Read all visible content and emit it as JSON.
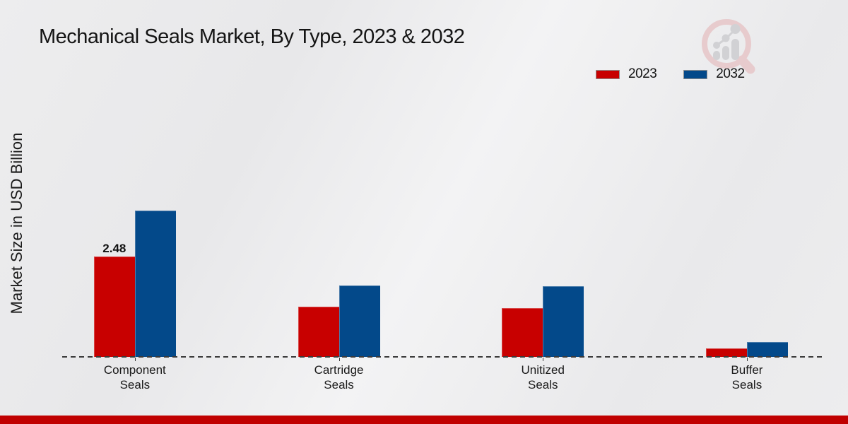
{
  "title": "Mechanical Seals Market, By Type, 2023 & 2032",
  "y_axis_label": "Market Size in USD Billion",
  "legend": {
    "items": [
      {
        "label": "2023",
        "color": "#c80000"
      },
      {
        "label": "2032",
        "color": "#03498a"
      }
    ]
  },
  "colors": {
    "series_2023": "#c80000",
    "series_2032": "#03498a",
    "footer_bar": "#c00000",
    "baseline": "#3a3a3a",
    "logo_ring": "#e7cbcd",
    "logo_bars": "#d1d1d4"
  },
  "chart_data": {
    "type": "bar",
    "categories": [
      "Component Seals",
      "Cartridge Seals",
      "Unitized Seals",
      "Buffer Seals"
    ],
    "series": [
      {
        "name": "2023",
        "color": "#c80000",
        "values": [
          2.48,
          1.24,
          1.21,
          0.21
        ],
        "labels": [
          "2.48",
          "",
          "",
          ""
        ]
      },
      {
        "name": "2032",
        "color": "#03498a",
        "values": [
          3.61,
          1.76,
          1.75,
          0.37
        ],
        "labels": [
          "",
          "",
          "",
          ""
        ]
      }
    ],
    "title": "Mechanical Seals Market, By Type, 2023 & 2032",
    "xlabel": "",
    "ylabel": "Market Size in USD Billion",
    "ylim": [
      0,
      3.8
    ],
    "grid": false,
    "legend_position": "top-right",
    "baseline_style": "dashed",
    "value_labels_shown": [
      "2.48 on 2023 Component Seals"
    ]
  }
}
